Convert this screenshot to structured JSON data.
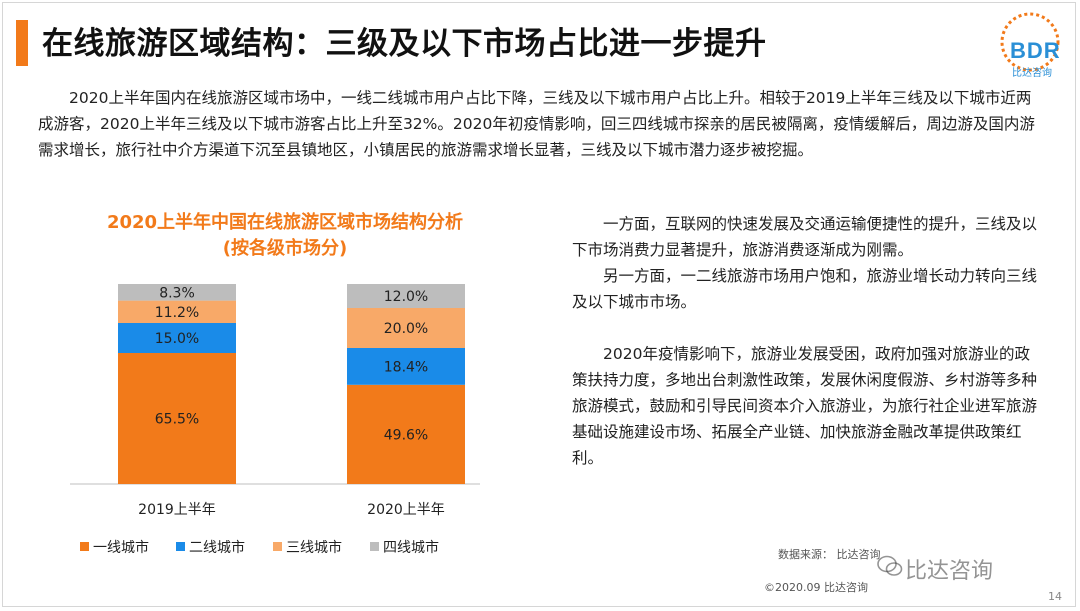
{
  "header": {
    "title": "在线旅游区域结构：三级及以下市场占比进一步提升",
    "accent_color": "#f27a1a",
    "logo_text": "BDR",
    "logo_sub": "比达咨询"
  },
  "intro": "2020上半年国内在线旅游区域市场中，一线二线城市用户占比下降，三线及以下城市用户占比上升。相较于2019上半年三线及以下城市近两成游客，2020上半年三线及以下城市游客占比上升至32%。2020年初疫情影响，回三四线城市探亲的居民被隔离，疫情缓解后，周边游及国内游需求增长，旅行社中介方渠道下沉至县镇地区，小镇居民的旅游需求增长显著，三线及以下城市潜力逐步被挖掘。",
  "chart_data": {
    "type": "bar",
    "stacked": true,
    "title": "2020上半年中国在线旅游区域市场结构分析",
    "subtitle": "(按各级市场分)",
    "categories": [
      "2019上半年",
      "2020上半年"
    ],
    "series": [
      {
        "name": "一线城市",
        "values": [
          65.5,
          49.6
        ],
        "labels": [
          "65.5%",
          "49.6%"
        ],
        "color": "#f27a1a"
      },
      {
        "name": "二线城市",
        "values": [
          15.0,
          18.4
        ],
        "labels": [
          "15.0%",
          "18.4%"
        ],
        "color": "#1a8be8"
      },
      {
        "name": "三线城市",
        "values": [
          11.2,
          20.0
        ],
        "labels": [
          "11.2%",
          "20.0%"
        ],
        "color": "#f8a968"
      },
      {
        "name": "四线城市",
        "values": [
          8.3,
          12.0
        ],
        "labels": [
          "8.3%",
          "12.0%"
        ],
        "color": "#bdbdbd"
      }
    ],
    "ylim": [
      0,
      100
    ],
    "legend_position": "bottom",
    "grid": false
  },
  "right_text": {
    "p1": "一方面，互联网的快速发展及交通运输便捷性的提升，三线及以下市场消费力显著提升，旅游消费逐渐成为刚需。",
    "p2": "另一方面，一二线旅游市场用户饱和，旅游业增长动力转向三线及以下城市市场。",
    "p3": "2020年疫情影响下，旅游业发展受困，政府加强对旅游业的政策扶持力度，多地出台刺激性政策，发展休闲度假游、乡村游等多种旅游模式，鼓励和引导民间资本介入旅游业，为旅行社企业进军旅游基础设施建设市场、拓展全产业链、加快旅游金融改革提供政策红利。"
  },
  "footer": {
    "source": "数据来源：  比达咨询",
    "copyright": "©2020.09 比达咨询",
    "page": "14",
    "watermark": "比达咨询"
  }
}
